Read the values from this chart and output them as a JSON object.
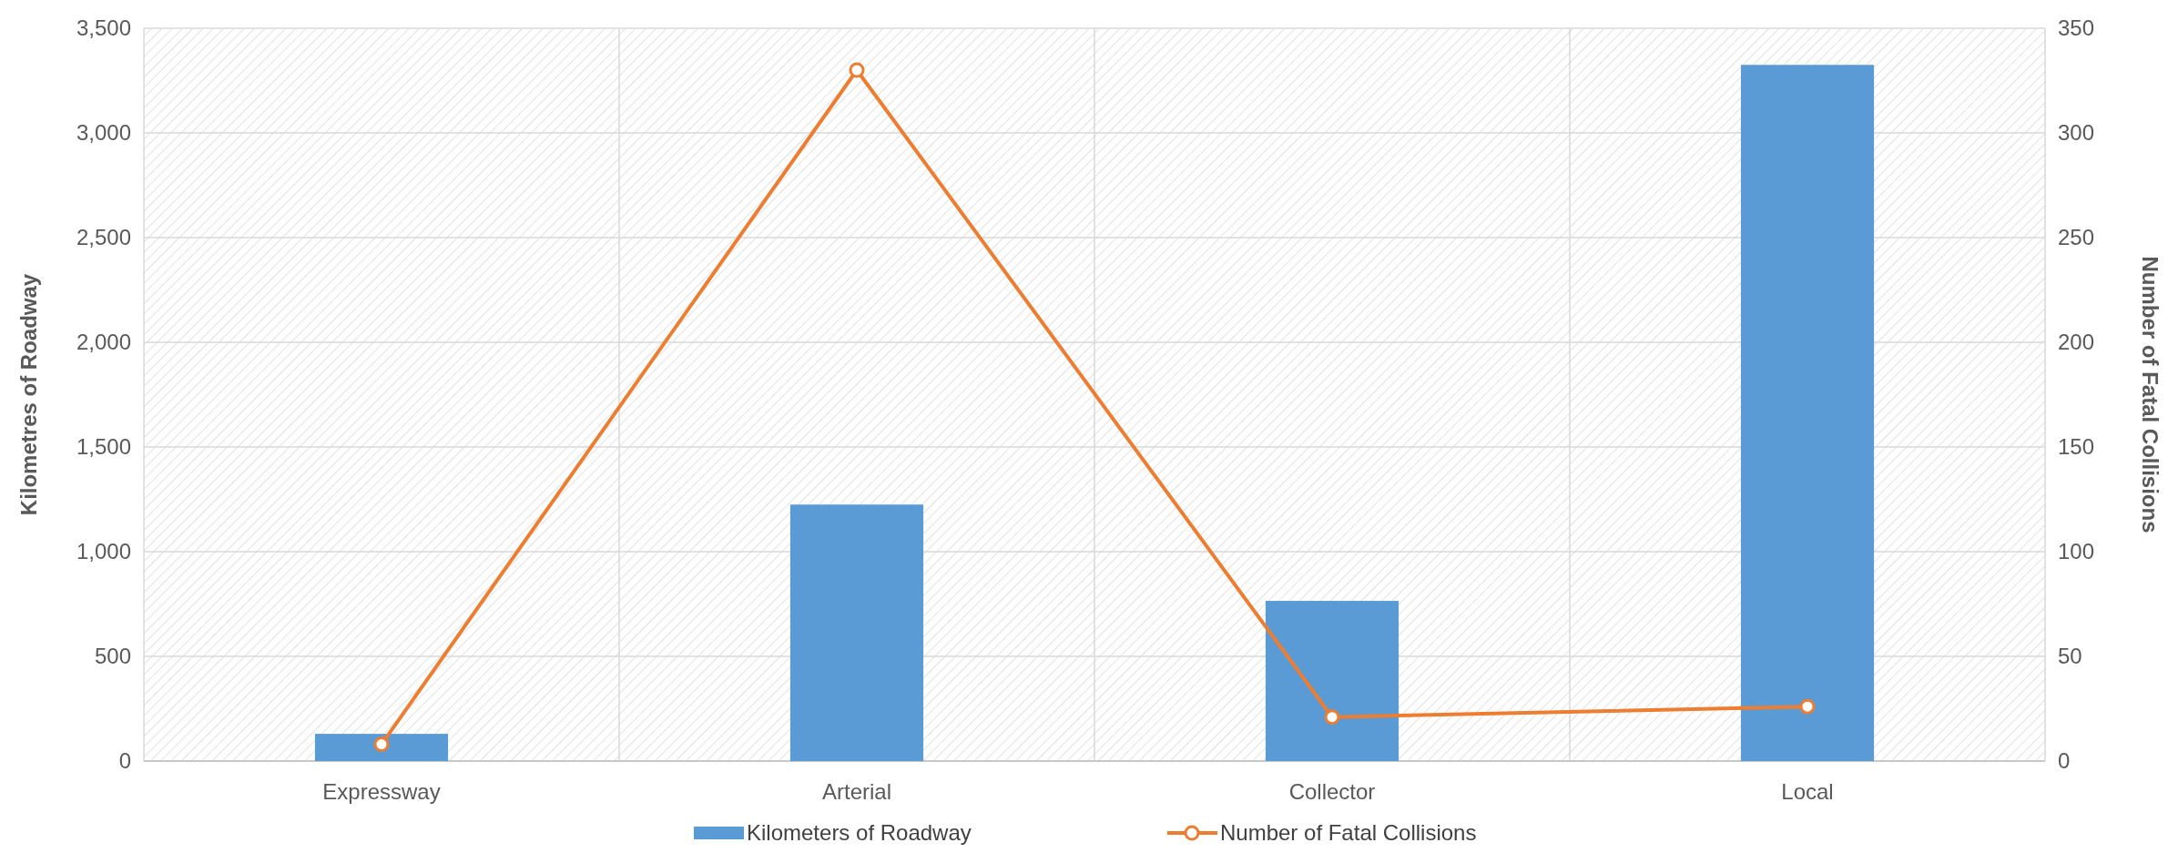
{
  "chart_data": {
    "type": "bar",
    "categories": [
      "Expressway",
      "Arterial",
      "Collector",
      "Local"
    ],
    "series": [
      {
        "name": "Kilometers of Roadway",
        "color": "#5b9bd5",
        "values": [
          130,
          1225,
          765,
          3325
        ]
      },
      {
        "name": "Number of Fatal Collisions",
        "type": "line",
        "axis": "y2",
        "color": "#ed7d31",
        "values": [
          8,
          330,
          21,
          26
        ]
      }
    ],
    "ylabel": "Kilometres of Roadway",
    "y2label": "Number of Fatal Collisions",
    "ylim": [
      0,
      3500
    ],
    "yticks": [
      0,
      500,
      {
        "value": 1000,
        "label": "1,000"
      },
      {
        "value": 1500,
        "label": "1,500"
      },
      {
        "value": 2000,
        "label": "2,000"
      },
      {
        "value": 2500,
        "label": "2,500"
      },
      {
        "value": 3000,
        "label": "3,000"
      },
      {
        "value": 3500,
        "label": "3,500"
      }
    ],
    "y2lim": [
      0,
      350
    ],
    "y2ticks": [
      0,
      50,
      100,
      150,
      200,
      250,
      300,
      350
    ],
    "grid": true,
    "legend": "bottom",
    "marker": "circle",
    "line_style": "solid"
  }
}
